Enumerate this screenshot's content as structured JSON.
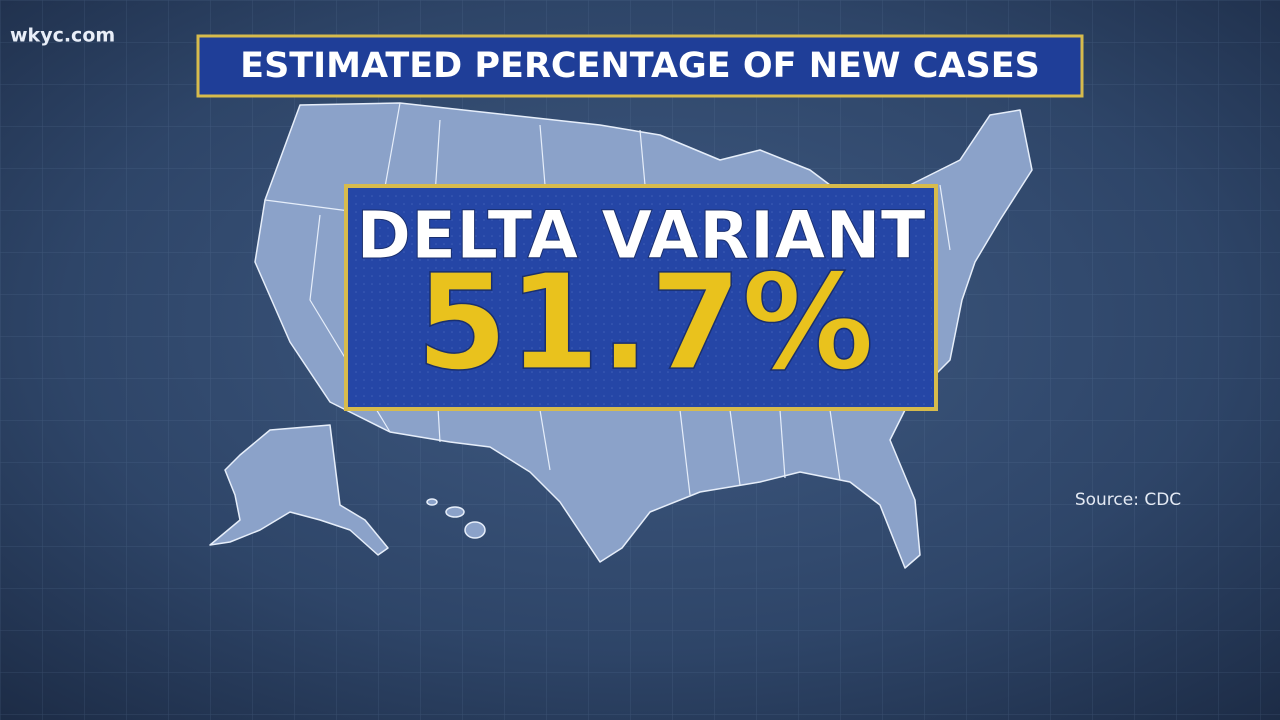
{
  "watermark": "wkyc.com",
  "header": {
    "title": "ESTIMATED PERCENTAGE OF NEW CASES"
  },
  "highlight": {
    "label": "DELTA VARIANT",
    "value": "51.7%"
  },
  "source": "Source: CDC"
}
